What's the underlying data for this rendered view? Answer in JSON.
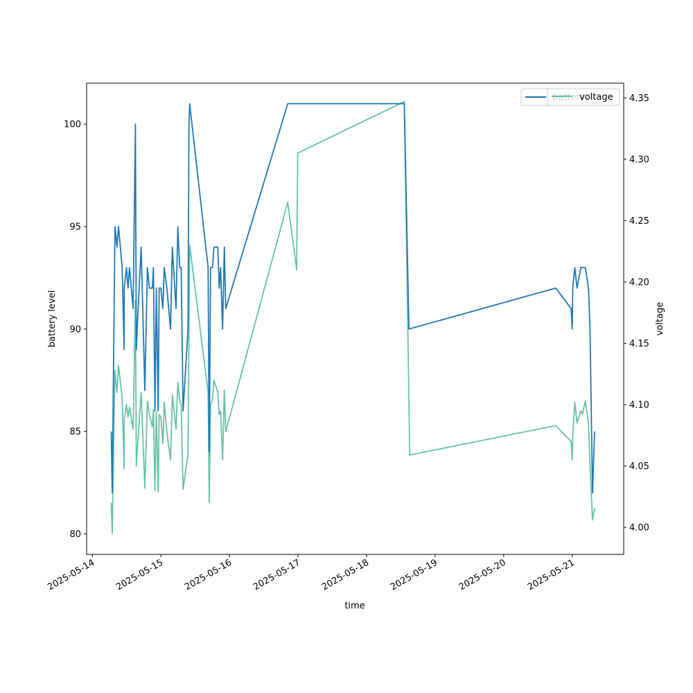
{
  "chart_data": {
    "type": "line",
    "xlabel": "time",
    "ylabel": "battery level",
    "y2label": "voltage",
    "xlim": [
      "2025-05-13T22:00",
      "2025-05-21T18:00"
    ],
    "ylim": [
      79,
      102
    ],
    "y2lim": [
      3.978,
      4.362
    ],
    "x_ticks": [
      "2025-05-14",
      "2025-05-15",
      "2025-05-16",
      "2025-05-17",
      "2025-05-18",
      "2025-05-19",
      "2025-05-20",
      "2025-05-21"
    ],
    "y_ticks": [
      80,
      85,
      90,
      95,
      100
    ],
    "y2_ticks": [
      "4.00",
      "4.05",
      "4.10",
      "4.15",
      "4.20",
      "4.25",
      "4.30",
      "4.35"
    ],
    "legend_position": "upper right",
    "legend": [
      {
        "label": "battery",
        "color": "#1f77b4"
      },
      {
        "label": "voltage",
        "color": "#66c2a5"
      }
    ],
    "series": [
      {
        "name": "battery",
        "axis": "left",
        "color": "#1f77b4",
        "points": [
          [
            "2025-05-14T06:36",
            85
          ],
          [
            "2025-05-14T06:58",
            82
          ],
          [
            "2025-05-14T07:55",
            95
          ],
          [
            "2025-05-14T08:38",
            94
          ],
          [
            "2025-05-14T09:10",
            95
          ],
          [
            "2025-05-14T10:26",
            93
          ],
          [
            "2025-05-14T11:07",
            89
          ],
          [
            "2025-05-14T11:10",
            92
          ],
          [
            "2025-05-14T11:57",
            93
          ],
          [
            "2025-05-14T12:29",
            92
          ],
          [
            "2025-05-14T13:01",
            93
          ],
          [
            "2025-05-14T14:17",
            91
          ],
          [
            "2025-05-14T15:05",
            100
          ],
          [
            "2025-05-14T15:24",
            89
          ],
          [
            "2025-05-14T15:43",
            90
          ],
          [
            "2025-05-14T17:06",
            94
          ],
          [
            "2025-05-14T18:22",
            87
          ],
          [
            "2025-05-14T19:17",
            93
          ],
          [
            "2025-05-14T19:58",
            92
          ],
          [
            "2025-05-14T21:00",
            92
          ],
          [
            "2025-05-14T21:23",
            93
          ],
          [
            "2025-05-14T21:55",
            86
          ],
          [
            "2025-05-14T22:24",
            92
          ],
          [
            "2025-05-14T23:02",
            86
          ],
          [
            "2025-05-14T23:24",
            92
          ],
          [
            "2025-05-15T00:00",
            92
          ],
          [
            "2025-05-15T00:41",
            91
          ],
          [
            "2025-05-15T01:10",
            93
          ],
          [
            "2025-05-15T02:05",
            92
          ],
          [
            "2025-05-15T03:22",
            90
          ],
          [
            "2025-05-15T04:00",
            94
          ],
          [
            "2025-05-15T05:17",
            91
          ],
          [
            "2025-05-15T05:55",
            95
          ],
          [
            "2025-05-15T06:34",
            93
          ],
          [
            "2025-05-15T07:05",
            93
          ],
          [
            "2025-05-15T07:46",
            86
          ],
          [
            "2025-05-15T09:29",
            90
          ],
          [
            "2025-05-15T09:50",
            100
          ],
          [
            "2025-05-15T10:05",
            101
          ],
          [
            "2025-05-15T16:31",
            93
          ],
          [
            "2025-05-15T16:55",
            84
          ],
          [
            "2025-05-15T17:24",
            93
          ],
          [
            "2025-05-15T18:05",
            93
          ],
          [
            "2025-05-15T18:34",
            94
          ],
          [
            "2025-05-15T19:55",
            94
          ],
          [
            "2025-05-15T20:24",
            92
          ],
          [
            "2025-05-15T20:53",
            93
          ],
          [
            "2025-05-15T21:36",
            90
          ],
          [
            "2025-05-15T22:12",
            94
          ],
          [
            "2025-05-15T22:41",
            91
          ],
          [
            "2025-05-16T20:24",
            101
          ],
          [
            "2025-05-18T13:12",
            101
          ],
          [
            "2025-05-18T14:50",
            90
          ],
          [
            "2025-05-20T18:14",
            92
          ],
          [
            "2025-05-20T23:36",
            91
          ],
          [
            "2025-05-20T23:58",
            90
          ],
          [
            "2025-05-21T00:10",
            92
          ],
          [
            "2025-05-21T00:53",
            93
          ],
          [
            "2025-05-21T01:41",
            92
          ],
          [
            "2025-05-21T03:00",
            93
          ],
          [
            "2025-05-21T04:34",
            93
          ],
          [
            "2025-05-21T05:41",
            92
          ],
          [
            "2025-05-21T06:12",
            90
          ],
          [
            "2025-05-21T07:05",
            82
          ],
          [
            "2025-05-21T07:48",
            85
          ]
        ]
      },
      {
        "name": "voltage",
        "axis": "right",
        "color": "#66c2a5",
        "points": [
          [
            "2025-05-14T06:36",
            4.02
          ],
          [
            "2025-05-14T06:58",
            3.995
          ],
          [
            "2025-05-14T07:55",
            4.128
          ],
          [
            "2025-05-14T08:38",
            4.11
          ],
          [
            "2025-05-14T09:10",
            4.132
          ],
          [
            "2025-05-14T10:26",
            4.105
          ],
          [
            "2025-05-14T11:07",
            4.048
          ],
          [
            "2025-05-14T11:10",
            4.088
          ],
          [
            "2025-05-14T11:57",
            4.1
          ],
          [
            "2025-05-14T12:29",
            4.09
          ],
          [
            "2025-05-14T13:01",
            4.098
          ],
          [
            "2025-05-14T14:17",
            4.08
          ],
          [
            "2025-05-14T15:05",
            4.185
          ],
          [
            "2025-05-14T15:24",
            4.05
          ],
          [
            "2025-05-14T15:43",
            4.062
          ],
          [
            "2025-05-14T17:06",
            4.11
          ],
          [
            "2025-05-14T18:22",
            4.032
          ],
          [
            "2025-05-14T19:17",
            4.103
          ],
          [
            "2025-05-14T19:58",
            4.092
          ],
          [
            "2025-05-14T21:00",
            4.082
          ],
          [
            "2025-05-14T21:23",
            4.096
          ],
          [
            "2025-05-14T21:55",
            4.03
          ],
          [
            "2025-05-14T22:24",
            4.094
          ],
          [
            "2025-05-14T23:02",
            4.029
          ],
          [
            "2025-05-14T23:24",
            4.092
          ],
          [
            "2025-05-15T00:00",
            4.09
          ],
          [
            "2025-05-15T00:41",
            4.068
          ],
          [
            "2025-05-15T01:10",
            4.102
          ],
          [
            "2025-05-15T02:05",
            4.078
          ],
          [
            "2025-05-15T03:22",
            4.055
          ],
          [
            "2025-05-15T04:00",
            4.108
          ],
          [
            "2025-05-15T05:17",
            4.08
          ],
          [
            "2025-05-15T05:55",
            4.118
          ],
          [
            "2025-05-15T06:34",
            4.104
          ],
          [
            "2025-05-15T07:05",
            4.1
          ],
          [
            "2025-05-15T07:46",
            4.031
          ],
          [
            "2025-05-15T09:29",
            4.06
          ],
          [
            "2025-05-15T10:05",
            4.23
          ],
          [
            "2025-05-15T16:31",
            4.11
          ],
          [
            "2025-05-15T16:55",
            4.02
          ],
          [
            "2025-05-15T17:24",
            4.1
          ],
          [
            "2025-05-15T18:05",
            4.105
          ],
          [
            "2025-05-15T18:34",
            4.12
          ],
          [
            "2025-05-15T19:55",
            4.11
          ],
          [
            "2025-05-15T20:24",
            4.092
          ],
          [
            "2025-05-15T20:53",
            4.095
          ],
          [
            "2025-05-15T21:36",
            4.055
          ],
          [
            "2025-05-15T22:12",
            4.112
          ],
          [
            "2025-05-15T22:41",
            4.078
          ],
          [
            "2025-05-16T20:24",
            4.265
          ],
          [
            "2025-05-16T23:31",
            4.21
          ],
          [
            "2025-05-16T23:53",
            4.305
          ],
          [
            "2025-05-18T13:12",
            4.347
          ],
          [
            "2025-05-18T15:07",
            4.059
          ],
          [
            "2025-05-20T18:14",
            4.083
          ],
          [
            "2025-05-20T23:36",
            4.07
          ],
          [
            "2025-05-20T23:58",
            4.055
          ],
          [
            "2025-05-21T00:10",
            4.075
          ],
          [
            "2025-05-21T00:53",
            4.102
          ],
          [
            "2025-05-21T01:41",
            4.085
          ],
          [
            "2025-05-21T03:00",
            4.095
          ],
          [
            "2025-05-21T03:36",
            4.092
          ],
          [
            "2025-05-21T04:34",
            4.103
          ],
          [
            "2025-05-21T05:41",
            4.085
          ],
          [
            "2025-05-21T06:12",
            4.05
          ],
          [
            "2025-05-21T07:05",
            4.006
          ],
          [
            "2025-05-21T07:48",
            4.016
          ]
        ]
      }
    ]
  }
}
